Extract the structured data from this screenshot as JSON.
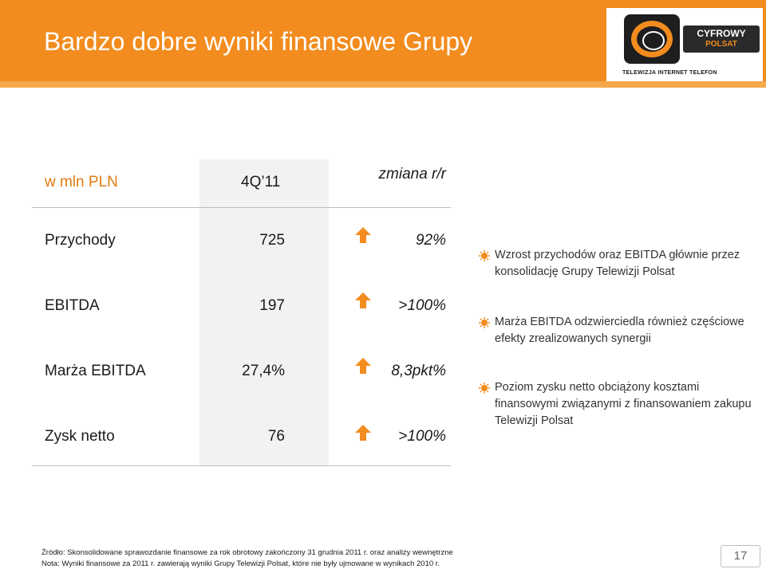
{
  "header": {
    "title": "Bardzo dobre wyniki finansowe Grupy",
    "logo": {
      "brand_line1": "CYFROWY",
      "brand_line2": "POLSAT",
      "tagline": "TELEWIZJA INTERNET TELEFON"
    }
  },
  "table": {
    "unit_label": "w mln PLN",
    "period_label": "4Q’11",
    "change_label": "zmiana r/r",
    "rows": [
      {
        "label": "Przychody",
        "value": "725",
        "trend_icon": "arrow-up",
        "change": "92%"
      },
      {
        "label": "EBITDA",
        "value": "197",
        "trend_icon": "arrow-up",
        "change": ">100%"
      },
      {
        "label": "Marża EBITDA",
        "value": "27,4%",
        "trend_icon": "arrow-up",
        "change": "8,3pkt%"
      },
      {
        "label": "Zysk netto",
        "value": "76",
        "trend_icon": "arrow-up",
        "change": ">100%"
      }
    ]
  },
  "bullets": [
    {
      "icon": "bullet-sun-icon",
      "text": "Wzrost przychodów oraz EBITDA głównie przez konsolidację Grupy Telewizji Polsat"
    },
    {
      "icon": "bullet-sun-icon",
      "text": "Marża EBITDA odzwierciedla również częściowe efekty zrealizowanych synergii"
    },
    {
      "icon": "bullet-sun-icon",
      "text": "Poziom zysku netto obciążony kosztami finansowymi związanymi z finansowaniem zakupu Telewizji Polsat"
    }
  ],
  "footer": {
    "source": "Źródło: Skonsolidowane sprawozdanie finansowe za rok obrotowy zakończony 31 grudnia 2011 r. oraz analizy wewnętrzne",
    "note": "Nota: Wyniki finansowe za 2011 r. zawierają wyniki Grupy Telewizji Polsat, które nie były ujmowane w wynikach 2010 r.",
    "page_number": "17"
  },
  "colors": {
    "header_bg": "#f28c1e",
    "accent": "#e27a12",
    "arrow": "#f28c1e"
  }
}
